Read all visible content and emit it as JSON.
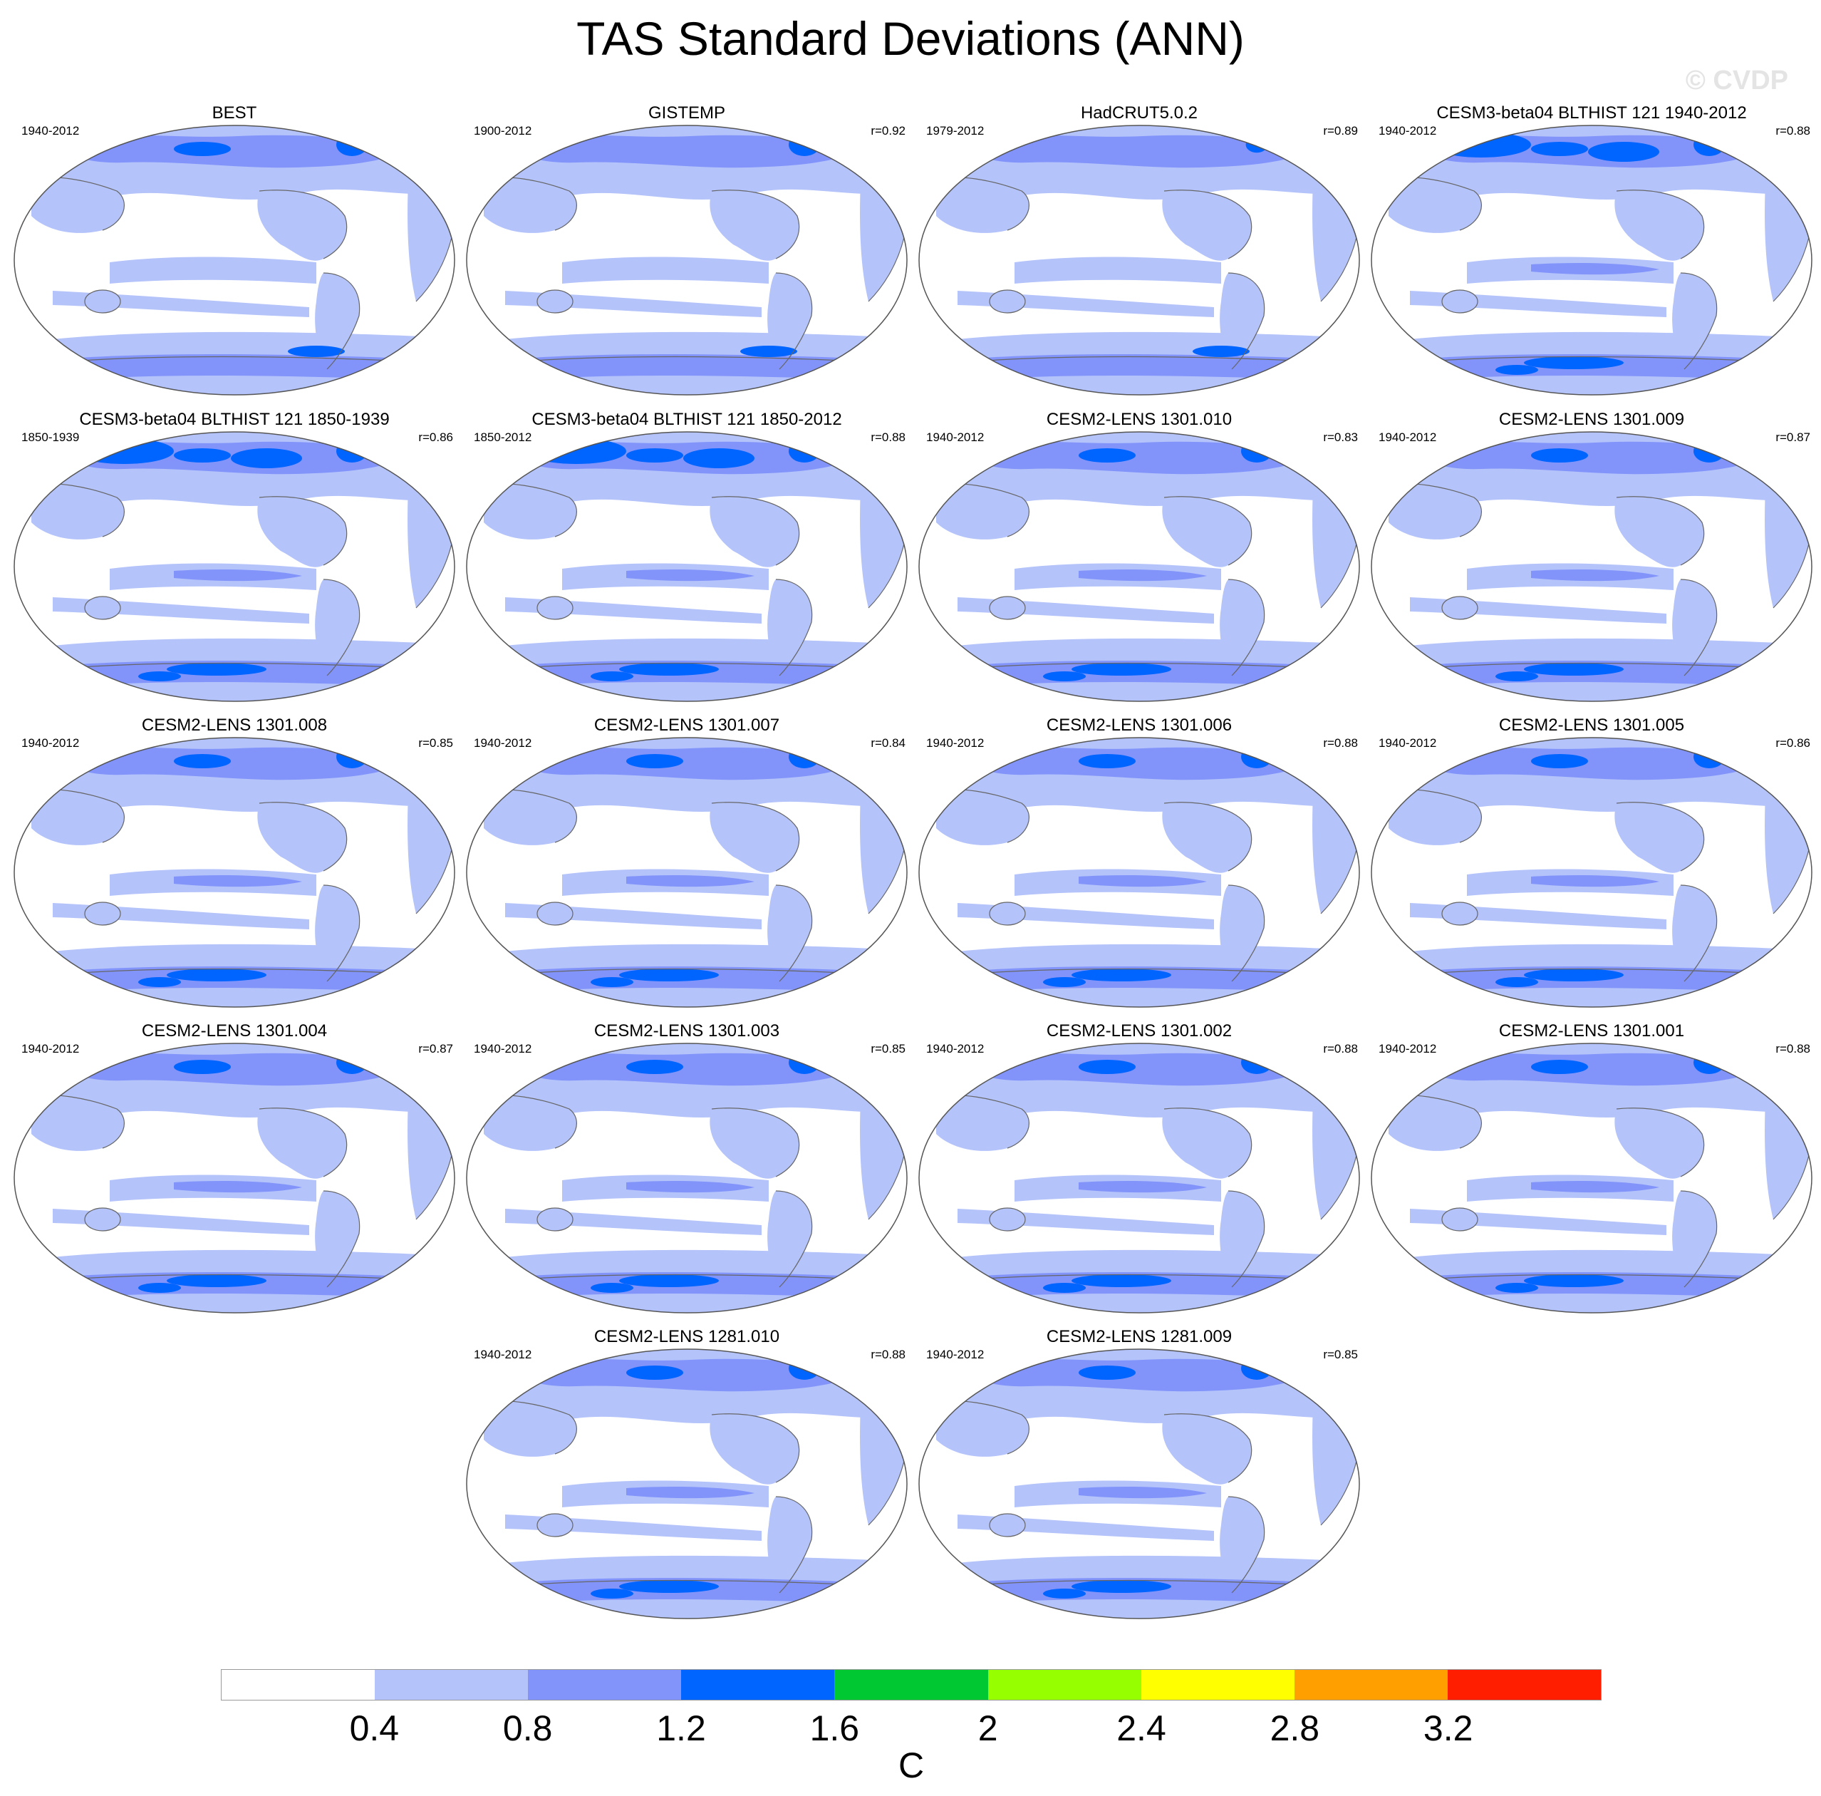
{
  "title": "TAS Standard Deviations (ANN)",
  "watermark": "© CVDP",
  "panels": [
    {
      "title": "BEST",
      "period": "1940-2012",
      "corr": ""
    },
    {
      "title": "GISTEMP",
      "period": "1900-2012",
      "corr": "r=0.92"
    },
    {
      "title": "HadCRUT5.0.2",
      "period": "1979-2012",
      "corr": "r=0.89"
    },
    {
      "title": "CESM3-beta04 BLTHIST 121 1940-2012",
      "period": "1940-2012",
      "corr": "r=0.88"
    },
    {
      "title": "CESM3-beta04 BLTHIST 121 1850-1939",
      "period": "1850-1939",
      "corr": "r=0.86"
    },
    {
      "title": "CESM3-beta04 BLTHIST 121 1850-2012",
      "period": "1850-2012",
      "corr": "r=0.88"
    },
    {
      "title": "CESM2-LENS 1301.010",
      "period": "1940-2012",
      "corr": "r=0.83"
    },
    {
      "title": "CESM2-LENS 1301.009",
      "period": "1940-2012",
      "corr": "r=0.87"
    },
    {
      "title": "CESM2-LENS 1301.008",
      "period": "1940-2012",
      "corr": "r=0.85"
    },
    {
      "title": "CESM2-LENS 1301.007",
      "period": "1940-2012",
      "corr": "r=0.84"
    },
    {
      "title": "CESM2-LENS 1301.006",
      "period": "1940-2012",
      "corr": "r=0.88"
    },
    {
      "title": "CESM2-LENS 1301.005",
      "period": "1940-2012",
      "corr": "r=0.86"
    },
    {
      "title": "CESM2-LENS 1301.004",
      "period": "1940-2012",
      "corr": "r=0.87"
    },
    {
      "title": "CESM2-LENS 1301.003",
      "period": "1940-2012",
      "corr": "r=0.85"
    },
    {
      "title": "CESM2-LENS 1301.002",
      "period": "1940-2012",
      "corr": "r=0.88"
    },
    {
      "title": "CESM2-LENS 1301.001",
      "period": "1940-2012",
      "corr": "r=0.88"
    },
    {
      "title": "CESM2-LENS 1281.010",
      "period": "1940-2012",
      "corr": "r=0.88"
    },
    {
      "title": "CESM2-LENS 1281.009",
      "period": "1940-2012",
      "corr": "r=0.85"
    }
  ],
  "colorbar": {
    "colors": [
      "#ffffff",
      "#b4c3fa",
      "#8294fa",
      "#0064ff",
      "#00c832",
      "#96ff00",
      "#ffff00",
      "#ffa000",
      "#ff1e00"
    ],
    "ticks": [
      "0.4",
      "0.8",
      "1.2",
      "1.6",
      "2",
      "2.4",
      "2.8",
      "3.2"
    ],
    "units": "C"
  },
  "colors": {
    "light": "#b4c3fa",
    "medium": "#8294fa",
    "blue": "#0064ff",
    "green": "#00c832",
    "yellowgreen": "#96ff00",
    "yellow": "#ffff00",
    "coast": "#666666"
  }
}
